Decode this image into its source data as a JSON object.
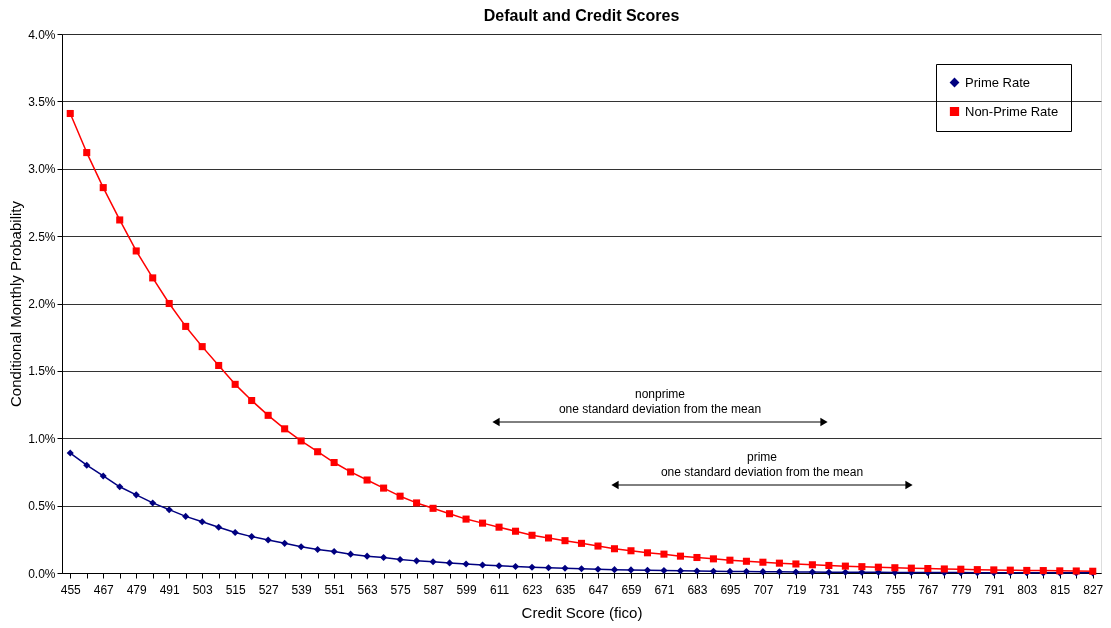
{
  "chart_data": {
    "type": "line",
    "title": "Default and Credit Scores",
    "xlabel": "Credit Score (fico)",
    "ylabel": "Conditional Monthly Probability",
    "x": [
      455,
      461,
      467,
      473,
      479,
      485,
      491,
      497,
      503,
      509,
      515,
      521,
      527,
      533,
      539,
      545,
      551,
      557,
      563,
      569,
      575,
      581,
      587,
      593,
      599,
      605,
      611,
      617,
      623,
      629,
      635,
      641,
      647,
      653,
      659,
      665,
      671,
      677,
      683,
      689,
      695,
      701,
      707,
      713,
      719,
      725,
      731,
      737,
      743,
      749,
      755,
      761,
      767,
      773,
      779,
      785,
      791,
      797,
      803,
      809,
      815,
      821,
      827
    ],
    "series": [
      {
        "name": "Prime Rate",
        "color": "#000080",
        "marker": "diamond",
        "values": [
          0.89,
          0.8,
          0.72,
          0.64,
          0.58,
          0.52,
          0.47,
          0.42,
          0.38,
          0.34,
          0.3,
          0.27,
          0.245,
          0.22,
          0.195,
          0.175,
          0.16,
          0.14,
          0.125,
          0.115,
          0.1,
          0.09,
          0.083,
          0.075,
          0.067,
          0.06,
          0.054,
          0.048,
          0.043,
          0.039,
          0.035,
          0.031,
          0.028,
          0.025,
          0.023,
          0.02,
          0.018,
          0.016,
          0.015,
          0.013,
          0.012,
          0.011,
          0.01,
          0.009,
          0.008,
          0.007,
          0.006,
          0.006,
          0.005,
          0.005,
          0.004,
          0.004,
          0.003,
          0.003,
          0.003,
          0.002,
          0.002,
          0.002,
          0.002,
          0.001,
          0.001,
          0.001,
          0.001
        ]
      },
      {
        "name": "Non-Prime Rate",
        "color": "#ff0000",
        "marker": "square",
        "values": [
          3.41,
          3.12,
          2.86,
          2.62,
          2.39,
          2.19,
          2.0,
          1.83,
          1.68,
          1.54,
          1.4,
          1.28,
          1.17,
          1.07,
          0.98,
          0.9,
          0.82,
          0.75,
          0.69,
          0.63,
          0.57,
          0.52,
          0.48,
          0.44,
          0.4,
          0.37,
          0.34,
          0.31,
          0.28,
          0.26,
          0.24,
          0.22,
          0.2,
          0.18,
          0.165,
          0.15,
          0.14,
          0.125,
          0.115,
          0.105,
          0.095,
          0.087,
          0.08,
          0.073,
          0.067,
          0.061,
          0.056,
          0.051,
          0.047,
          0.043,
          0.039,
          0.036,
          0.033,
          0.03,
          0.028,
          0.025,
          0.023,
          0.021,
          0.019,
          0.018,
          0.016,
          0.015,
          0.013
        ]
      }
    ],
    "xlim": [
      452,
      830
    ],
    "xticks": [
      455,
      {
        "value": 461,
        "label": null
      },
      467,
      {
        "value": 473,
        "label": null
      },
      479,
      {
        "value": 485,
        "label": null
      },
      491,
      {
        "value": 497,
        "label": null
      },
      503,
      {
        "value": 509,
        "label": null
      },
      515,
      {
        "value": 521,
        "label": null
      },
      527,
      {
        "value": 533,
        "label": null
      },
      539,
      {
        "value": 545,
        "label": null
      },
      551,
      {
        "value": 557,
        "label": null
      },
      563,
      {
        "value": 569,
        "label": null
      },
      575,
      {
        "value": 581,
        "label": null
      },
      587,
      {
        "value": 593,
        "label": null
      },
      599,
      {
        "value": 605,
        "label": null
      },
      611,
      {
        "value": 617,
        "label": null
      },
      623,
      {
        "value": 629,
        "label": null
      },
      635,
      {
        "value": 641,
        "label": null
      },
      647,
      {
        "value": 653,
        "label": null
      },
      659,
      {
        "value": 665,
        "label": null
      },
      671,
      {
        "value": 677,
        "label": null
      },
      683,
      {
        "value": 689,
        "label": null
      },
      695,
      {
        "value": 701,
        "label": null
      },
      707,
      {
        "value": 713,
        "label": null
      },
      719,
      {
        "value": 725,
        "label": null
      },
      731,
      {
        "value": 737,
        "label": null
      },
      743,
      {
        "value": 749,
        "label": null
      },
      755,
      {
        "value": 761,
        "label": null
      },
      767,
      {
        "value": 773,
        "label": null
      },
      779,
      {
        "value": 785,
        "label": null
      },
      791,
      {
        "value": 797,
        "label": null
      },
      803,
      {
        "value": 809,
        "label": null
      },
      815,
      {
        "value": 821,
        "label": null
      },
      827
    ],
    "ylim": [
      0,
      4
    ],
    "yticks": [
      {
        "value": 0,
        "label": "0.0%"
      },
      {
        "value": 0.5,
        "label": "0.5%"
      },
      {
        "value": 1,
        "label": "1.0%"
      },
      {
        "value": 1.5,
        "label": "1.5%"
      },
      {
        "value": 2,
        "label": "2.0%"
      },
      {
        "value": 2.5,
        "label": "2.5%"
      },
      {
        "value": 3,
        "label": "3.0%"
      },
      {
        "value": 3.5,
        "label": "3.5%"
      },
      {
        "value": 4,
        "label": "4.0%"
      }
    ],
    "grid": "y",
    "legend": "top right",
    "line_style": "solid",
    "annotations": [
      "nonprime\none standard deviation from the mean",
      "prime\none standard deviation from the mean"
    ]
  }
}
